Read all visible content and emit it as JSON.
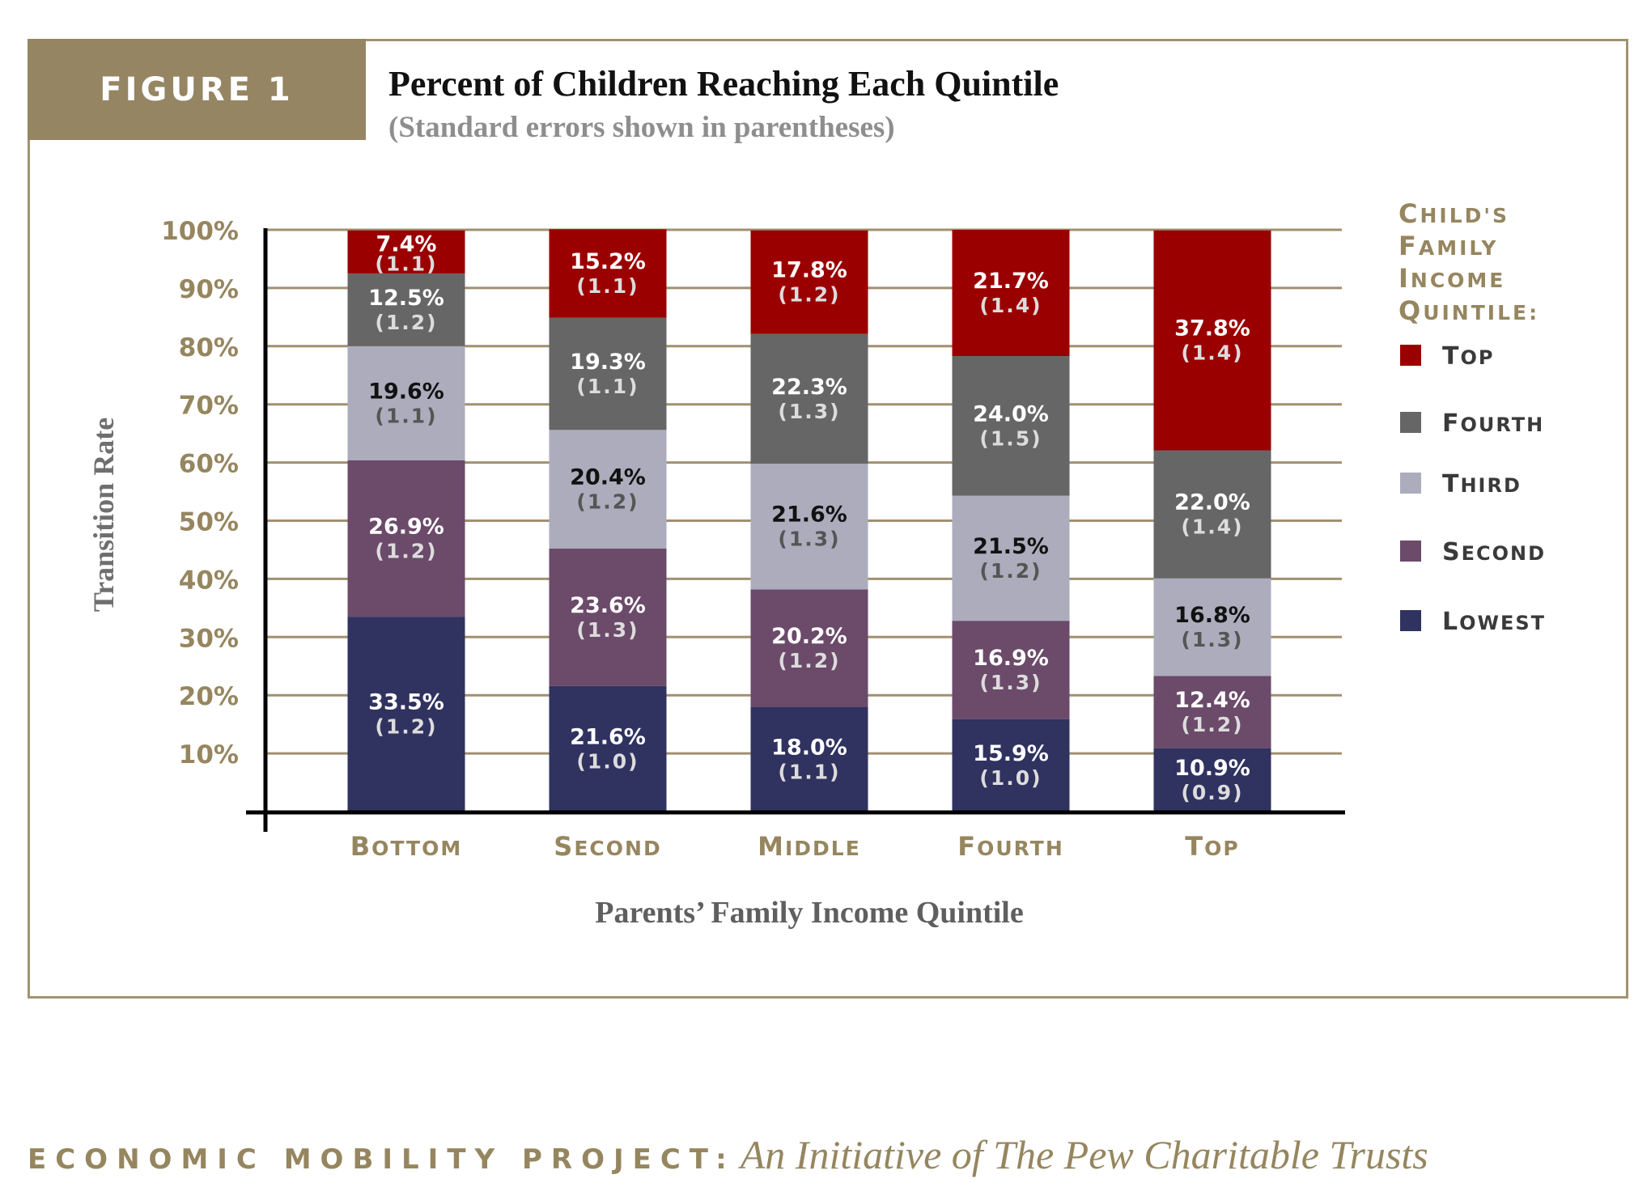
{
  "figure_label": "FIGURE 1",
  "footer": {
    "left": "ECONOMIC MOBILITY PROJECT:",
    "right": "An Initiative of The Pew Charitable Trusts"
  },
  "colors": {
    "brand": "#968563",
    "text_gold": "#96865f",
    "Top": "#9b0000",
    "Fourth": "#666666",
    "Third": "#acacbd",
    "Second": "#6b4a6a",
    "Lowest": "#303260"
  },
  "chart_data": {
    "type": "bar",
    "stacked": true,
    "title": "Percent of Children Reaching Each Quintile",
    "subtitle": "(Standard errors shown in parentheses)",
    "xlabel": "Parents’ Family Income Quintile",
    "ylabel": "Transition Rate",
    "ylim": [
      0,
      100
    ],
    "yticks": [
      "10%",
      "20%",
      "30%",
      "40%",
      "50%",
      "60%",
      "70%",
      "80%",
      "90%",
      "100%"
    ],
    "categories": [
      "Bottom",
      "Second",
      "Middle",
      "Fourth",
      "Top"
    ],
    "legend_title": "Child's Family Income Quintile:",
    "legend_position": "right",
    "grid": true,
    "series": [
      {
        "name": "Lowest",
        "values": [
          33.5,
          21.6,
          18.0,
          15.9,
          10.9
        ],
        "labels": [
          "33.5%",
          "21.6%",
          "18.0%",
          "15.9%",
          "10.9%"
        ],
        "se": [
          "(1.2)",
          "(1.0)",
          "(1.1)",
          "(1.0)",
          "(0.9)"
        ]
      },
      {
        "name": "Second",
        "values": [
          26.9,
          23.6,
          20.2,
          16.9,
          12.4
        ],
        "labels": [
          "26.9%",
          "23.6%",
          "20.2%",
          "16.9%",
          "12.4%"
        ],
        "se": [
          "(1.2)",
          "(1.3)",
          "(1.2)",
          "(1.3)",
          "(1.2)"
        ]
      },
      {
        "name": "Third",
        "values": [
          19.6,
          20.4,
          21.6,
          21.5,
          16.8
        ],
        "labels": [
          "19.6%",
          "20.4%",
          "21.6%",
          "21.5%",
          "16.8%"
        ],
        "se": [
          "(1.1)",
          "(1.2)",
          "(1.3)",
          "(1.2)",
          "(1.3)"
        ]
      },
      {
        "name": "Fourth",
        "values": [
          12.5,
          19.3,
          22.3,
          24.0,
          22.0
        ],
        "labels": [
          "12.5%",
          "19.3%",
          "22.3%",
          "24.0%",
          "22.0%"
        ],
        "se": [
          "(1.2)",
          "(1.1)",
          "(1.3)",
          "(1.5)",
          "(1.4)"
        ]
      },
      {
        "name": "Top",
        "values": [
          7.4,
          15.2,
          17.8,
          21.7,
          37.8
        ],
        "labels": [
          "7.4%",
          "15.2%",
          "17.8%",
          "21.7%",
          "37.8%"
        ],
        "se": [
          "(1.1)",
          "(1.1)",
          "(1.2)",
          "(1.4)",
          "(1.4)"
        ]
      }
    ]
  }
}
